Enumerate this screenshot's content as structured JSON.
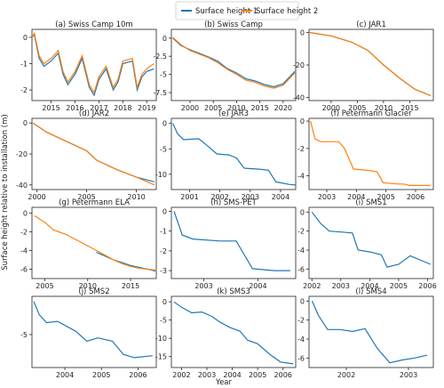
{
  "figure": {
    "ylabel": "Surface height relative to installation (m)",
    "xlabel": "Year",
    "legend": [
      "Surface height 1",
      "Surface height 2"
    ],
    "colors": {
      "series1": "#1f77b4",
      "series2": "#ff7f0e"
    }
  },
  "chart_data": [
    {
      "type": "line",
      "title": "(a) Swiss Camp 10m",
      "xlim": [
        2014.2,
        2019.4
      ],
      "ylim": [
        -2.4,
        0.3
      ],
      "xticks": [
        2015,
        2016,
        2017,
        2018,
        2019
      ],
      "yticks": [
        0,
        -1,
        -2
      ],
      "series": [
        {
          "name": "Surface height 1",
          "x": [
            2014.2,
            2014.3,
            2014.5,
            2014.7,
            2015.0,
            2015.3,
            2015.5,
            2015.7,
            2016.0,
            2016.3,
            2016.6,
            2016.8,
            2017.0,
            2017.3,
            2017.6,
            2017.8,
            2018.0,
            2018.4,
            2018.6,
            2018.8,
            2019.0,
            2019.3
          ],
          "y": [
            0,
            0.1,
            -0.8,
            -1.1,
            -0.9,
            -0.6,
            -1.4,
            -1.8,
            -1.4,
            -0.8,
            -1.9,
            -2.2,
            -1.6,
            -1.2,
            -2.0,
            -1.7,
            -1.0,
            -0.9,
            -2.0,
            -1.5,
            -1.3,
            -1.2
          ]
        },
        {
          "name": "Surface height 2",
          "x": [
            2014.2,
            2014.3,
            2014.5,
            2014.7,
            2015.0,
            2015.3,
            2015.5,
            2015.7,
            2016.0,
            2016.3,
            2016.6,
            2016.8,
            2017.0,
            2017.3,
            2017.6,
            2017.8,
            2018.0,
            2018.4,
            2018.6,
            2018.8,
            2019.0,
            2019.3
          ],
          "y": [
            0,
            0.15,
            -0.7,
            -1.0,
            -0.8,
            -0.5,
            -1.3,
            -1.7,
            -1.3,
            -0.7,
            -1.8,
            -2.1,
            -1.5,
            -1.1,
            -1.9,
            -1.6,
            -0.9,
            -0.8,
            -1.9,
            -1.4,
            -1.2,
            -1.0
          ]
        }
      ]
    },
    {
      "type": "line",
      "title": "(b) Swiss Camp",
      "xlim": [
        1996,
        2022.7
      ],
      "ylim": [
        -8.6,
        1.2
      ],
      "xticks": [
        2000,
        2005,
        2010,
        2015,
        2020
      ],
      "yticks": [
        0,
        -2.5,
        -5.0,
        -7.5
      ],
      "series": [
        {
          "name": "Surface height 1",
          "x": [
            1996.3,
            1998,
            2000,
            2002,
            2004,
            2006,
            2008,
            2010,
            2012,
            2014,
            2016,
            2018,
            2020,
            2022.5
          ],
          "y": [
            0,
            -1.0,
            -1.6,
            -2.1,
            -2.6,
            -3.2,
            -4.2,
            -4.8,
            -5.6,
            -5.9,
            -6.4,
            -6.7,
            -6.3,
            -4.6
          ]
        },
        {
          "name": "Surface height 2",
          "x": [
            1996.3,
            1998,
            2000,
            2002,
            2004,
            2006,
            2008,
            2010,
            2012,
            2014,
            2016,
            2018,
            2020,
            2022.5
          ],
          "y": [
            0.1,
            -0.9,
            -1.7,
            -2.2,
            -2.7,
            -3.4,
            -4.3,
            -5.0,
            -5.8,
            -6.1,
            -6.6,
            -6.9,
            -6.5,
            -4.8
          ]
        }
      ]
    },
    {
      "type": "line",
      "title": "(c) JAR1",
      "xlim": [
        1995.8,
        2019.5
      ],
      "ylim": [
        -42,
        2
      ],
      "xticks": [
        2000,
        2005,
        2010,
        2015
      ],
      "yticks": [
        0,
        -20,
        -40
      ],
      "series": [
        {
          "name": "Surface height 1",
          "x": [
            1996,
            2000,
            2004,
            2007,
            2010,
            2013,
            2016,
            2019
          ],
          "y": [
            0,
            -2,
            -6,
            -11,
            -20,
            -28,
            -35,
            -39
          ]
        },
        {
          "name": "Surface height 2",
          "x": [
            1996,
            2000,
            2004,
            2007,
            2010,
            2013,
            2016,
            2019
          ],
          "y": [
            0,
            -2,
            -6,
            -11,
            -20,
            -28,
            -35,
            -39
          ]
        }
      ]
    },
    {
      "type": "line",
      "title": "(d) JAR2",
      "xlim": [
        1999.5,
        2012
      ],
      "ylim": [
        -43,
        3
      ],
      "xticks": [
        2000,
        2005,
        2010
      ],
      "yticks": [
        0,
        -20,
        -40
      ],
      "series": [
        {
          "name": "Surface height 1",
          "x": [
            1999.6,
            2001,
            2003,
            2005,
            2006,
            2008,
            2010,
            2011.8
          ],
          "y": [
            0,
            -6,
            -12,
            -18,
            -24,
            -30,
            -35,
            -38
          ]
        },
        {
          "name": "Surface height 2",
          "x": [
            1999.6,
            2001,
            2003,
            2005,
            2006,
            2008,
            2010,
            2011.8
          ],
          "y": [
            0,
            -6,
            -12,
            -18,
            -24,
            -30,
            -35,
            -40
          ]
        }
      ]
    },
    {
      "type": "line",
      "title": "(e) JAR3",
      "xlim": [
        2000.4,
        2004.5
      ],
      "ylim": [
        -13,
        1
      ],
      "xticks": [
        2001,
        2002,
        2003,
        2004
      ],
      "yticks": [
        0,
        -5,
        -10
      ],
      "series": [
        {
          "name": "Surface height 1",
          "x": [
            2000.45,
            2000.6,
            2000.8,
            2001.3,
            2001.55,
            2001.9,
            2002.3,
            2002.55,
            2002.8,
            2003.3,
            2003.6,
            2003.85,
            2004.3,
            2004.5
          ],
          "y": [
            0,
            -2.0,
            -3.2,
            -3.0,
            -4.2,
            -6.0,
            -6.2,
            -6.8,
            -8.8,
            -9.0,
            -9.2,
            -11.5,
            -12.0,
            -12.1
          ]
        }
      ]
    },
    {
      "type": "line",
      "title": "(f) Petermann Glacier",
      "xlim": [
        2002.4,
        2006.6
      ],
      "ylim": [
        -5.0,
        0.2
      ],
      "xticks": [
        2003,
        2004,
        2005,
        2006
      ],
      "yticks": [
        0,
        -2,
        -4
      ],
      "series": [
        {
          "name": "Surface height 2",
          "x": [
            2002.45,
            2002.6,
            2002.8,
            2003.4,
            2003.6,
            2003.9,
            2004.4,
            2004.7,
            2004.9,
            2005.4,
            2005.6,
            2005.8,
            2006.5
          ],
          "y": [
            0,
            -1.3,
            -1.5,
            -1.5,
            -2.0,
            -3.5,
            -3.6,
            -3.7,
            -4.5,
            -4.6,
            -4.6,
            -4.7,
            -4.7
          ]
        }
      ]
    },
    {
      "type": "line",
      "title": "(g) Petermann ELA",
      "xlim": [
        2003.5,
        2018
      ],
      "ylim": [
        -7.0,
        0.6
      ],
      "xticks": [
        2005,
        2010,
        2015
      ],
      "yticks": [
        0,
        -2,
        -4,
        -6
      ],
      "series": [
        {
          "name": "Surface height 1",
          "x": [
            2011,
            2012,
            2013,
            2014,
            2015,
            2016,
            2017,
            2017.9
          ],
          "y": [
            -4.2,
            -4.6,
            -5.0,
            -5.3,
            -5.6,
            -5.8,
            -6.0,
            -6.2
          ]
        },
        {
          "name": "Surface height 2",
          "x": [
            2003.8,
            2005,
            2006,
            2007.5,
            2011,
            2012,
            2013,
            2014,
            2015,
            2016,
            2017,
            2017.9
          ],
          "y": [
            -0.3,
            -1.0,
            -1.8,
            -2.3,
            -4.0,
            -4.5,
            -5.0,
            -5.4,
            -5.7,
            -5.9,
            -6.0,
            -6.1
          ]
        }
      ]
    },
    {
      "type": "line",
      "title": "(h) SMS-PET",
      "xlim": [
        2002.4,
        2004.7
      ],
      "ylim": [
        -3.4,
        0.2
      ],
      "xticks": [
        2003,
        2004
      ],
      "yticks": [
        0,
        -1,
        -2,
        -3
      ],
      "series": [
        {
          "name": "Surface height 1",
          "x": [
            2002.45,
            2002.6,
            2002.8,
            2003.3,
            2003.6,
            2003.9,
            2004.3,
            2004.6
          ],
          "y": [
            0,
            -1.2,
            -1.4,
            -1.5,
            -1.5,
            -2.9,
            -3.0,
            -3.0
          ]
        }
      ]
    },
    {
      "type": "line",
      "title": "(i) SMS1",
      "xlim": [
        2001.9,
        2006.2
      ],
      "ylim": [
        -7.0,
        0.5
      ],
      "xticks": [
        2002,
        2003,
        2004,
        2005,
        2006
      ],
      "yticks": [
        0,
        -2,
        -4,
        -6
      ],
      "series": [
        {
          "name": "Surface height 1",
          "x": [
            2002.0,
            2002.3,
            2002.6,
            2003.0,
            2003.4,
            2003.6,
            2004.0,
            2004.4,
            2004.6,
            2005.0,
            2005.4,
            2006.1
          ],
          "y": [
            0,
            -1.2,
            -2.0,
            -2.1,
            -2.2,
            -4.0,
            -4.2,
            -4.5,
            -5.8,
            -5.5,
            -4.6,
            -5.5
          ]
        }
      ]
    },
    {
      "type": "line",
      "title": "(j) SMS2",
      "xlim": [
        2003.1,
        2006.5
      ],
      "ylim": [
        -10.0,
        0.8
      ],
      "xticks": [
        2004,
        2005,
        2006
      ],
      "yticks": [
        -5
      ],
      "series": [
        {
          "name": "Surface height 1",
          "x": [
            2003.15,
            2003.3,
            2003.5,
            2003.8,
            2004.3,
            2004.6,
            2004.9,
            2005.3,
            2005.6,
            2005.9,
            2006.4
          ],
          "y": [
            0,
            -2.0,
            -3.2,
            -3.0,
            -4.5,
            -6.0,
            -5.5,
            -6.0,
            -8.0,
            -8.5,
            -8.2
          ]
        }
      ]
    },
    {
      "type": "line",
      "title": "(k) SMS3",
      "xlim": [
        2001.6,
        2006.5
      ],
      "ylim": [
        -18.0,
        1.5
      ],
      "xticks": [
        2002,
        2003,
        2004,
        2005,
        2006
      ],
      "yticks": [
        0,
        -5,
        -10,
        -15
      ],
      "series": [
        {
          "name": "Surface height 1",
          "x": [
            2001.7,
            2002.0,
            2002.4,
            2002.8,
            2003.2,
            2003.5,
            2003.9,
            2004.3,
            2004.6,
            2005.0,
            2005.5,
            2005.9,
            2006.4
          ],
          "y": [
            0,
            -1.5,
            -3.0,
            -2.8,
            -4.0,
            -5.5,
            -7.0,
            -8.0,
            -10.5,
            -11.5,
            -14.5,
            -16.5,
            -17.0
          ]
        }
      ]
    },
    {
      "type": "line",
      "title": "(l) SMS4",
      "xlim": [
        2001.4,
        2003.4
      ],
      "ylim": [
        -7.0,
        0.5
      ],
      "xticks": [
        2002,
        2003
      ],
      "yticks": [
        0,
        -2,
        -4,
        -6
      ],
      "series": [
        {
          "name": "Surface height 1",
          "x": [
            2001.45,
            2001.55,
            2001.7,
            2001.9,
            2002.1,
            2002.3,
            2002.5,
            2002.7,
            2002.9,
            2003.1,
            2003.3
          ],
          "y": [
            0,
            -1.5,
            -3.0,
            -3.0,
            -3.2,
            -2.9,
            -5.0,
            -6.5,
            -6.2,
            -6.0,
            -5.7
          ]
        }
      ]
    }
  ]
}
